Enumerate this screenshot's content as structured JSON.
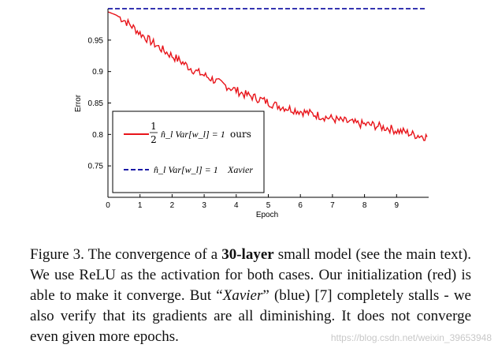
{
  "chart_data": {
    "type": "line",
    "xlabel": "Epoch",
    "ylabel": "Error",
    "xlim": [
      0,
      10
    ],
    "ylim": [
      0.7,
      1.0
    ],
    "xticks": [
      0,
      1,
      2,
      3,
      4,
      5,
      6,
      7,
      8,
      9
    ],
    "yticks": [
      0.75,
      0.8,
      0.85,
      0.9,
      0.95
    ],
    "ytick_labels": [
      "0.75",
      "0.8",
      "0.85",
      "0.9",
      "0.95"
    ],
    "grid": false,
    "legend": "lower-left",
    "series": [
      {
        "color": "#e8141a",
        "style": "solid",
        "x": [
          0,
          0.25,
          0.5,
          0.75,
          1.0,
          1.25,
          1.5,
          1.75,
          2.0,
          2.25,
          2.5,
          2.75,
          3.0,
          3.25,
          3.5,
          3.75,
          4.0,
          4.25,
          4.5,
          4.75,
          5.0,
          5.25,
          5.5,
          5.75,
          6.0,
          6.25,
          6.5,
          6.75,
          7.0,
          7.25,
          7.5,
          7.75,
          8.0,
          8.25,
          8.5,
          8.75,
          9.0,
          9.25,
          9.5,
          9.75,
          9.95
        ],
        "values": [
          0.995,
          0.99,
          0.982,
          0.972,
          0.961,
          0.951,
          0.942,
          0.933,
          0.925,
          0.917,
          0.908,
          0.9,
          0.894,
          0.888,
          0.881,
          0.876,
          0.87,
          0.864,
          0.86,
          0.856,
          0.851,
          0.846,
          0.843,
          0.84,
          0.837,
          0.834,
          0.831,
          0.828,
          0.825,
          0.822,
          0.82,
          0.817,
          0.816,
          0.815,
          0.812,
          0.81,
          0.806,
          0.804,
          0.8,
          0.798,
          0.796
        ]
      },
      {
        "color": "#1a1aa6",
        "style": "dashed",
        "x": [
          0,
          9.95
        ],
        "values": [
          1.0,
          1.0
        ]
      }
    ]
  },
  "legend": {
    "red_formula": "n̂_l Var[w_l] = 1",
    "red_fraction_num": "1",
    "red_fraction_den": "2",
    "red_name": "ours",
    "blue_formula": "n̂_l Var[w_l] = 1",
    "blue_name": "Xavier"
  },
  "caption": {
    "prefix": "Figure 3. The convergence of a ",
    "bold": "30-layer",
    "mid1": " small model (see the main text). We use ReLU as the activation for both cases. Our initialization (red) is able to make it converge. But “",
    "italic": "Xavier",
    "mid2": "” (blue) [7] completely stalls - we also verify that its gradients are all diminishing. It does not converge even given more epochs."
  },
  "watermark": "https://blog.csdn.net/weixin_39653948"
}
